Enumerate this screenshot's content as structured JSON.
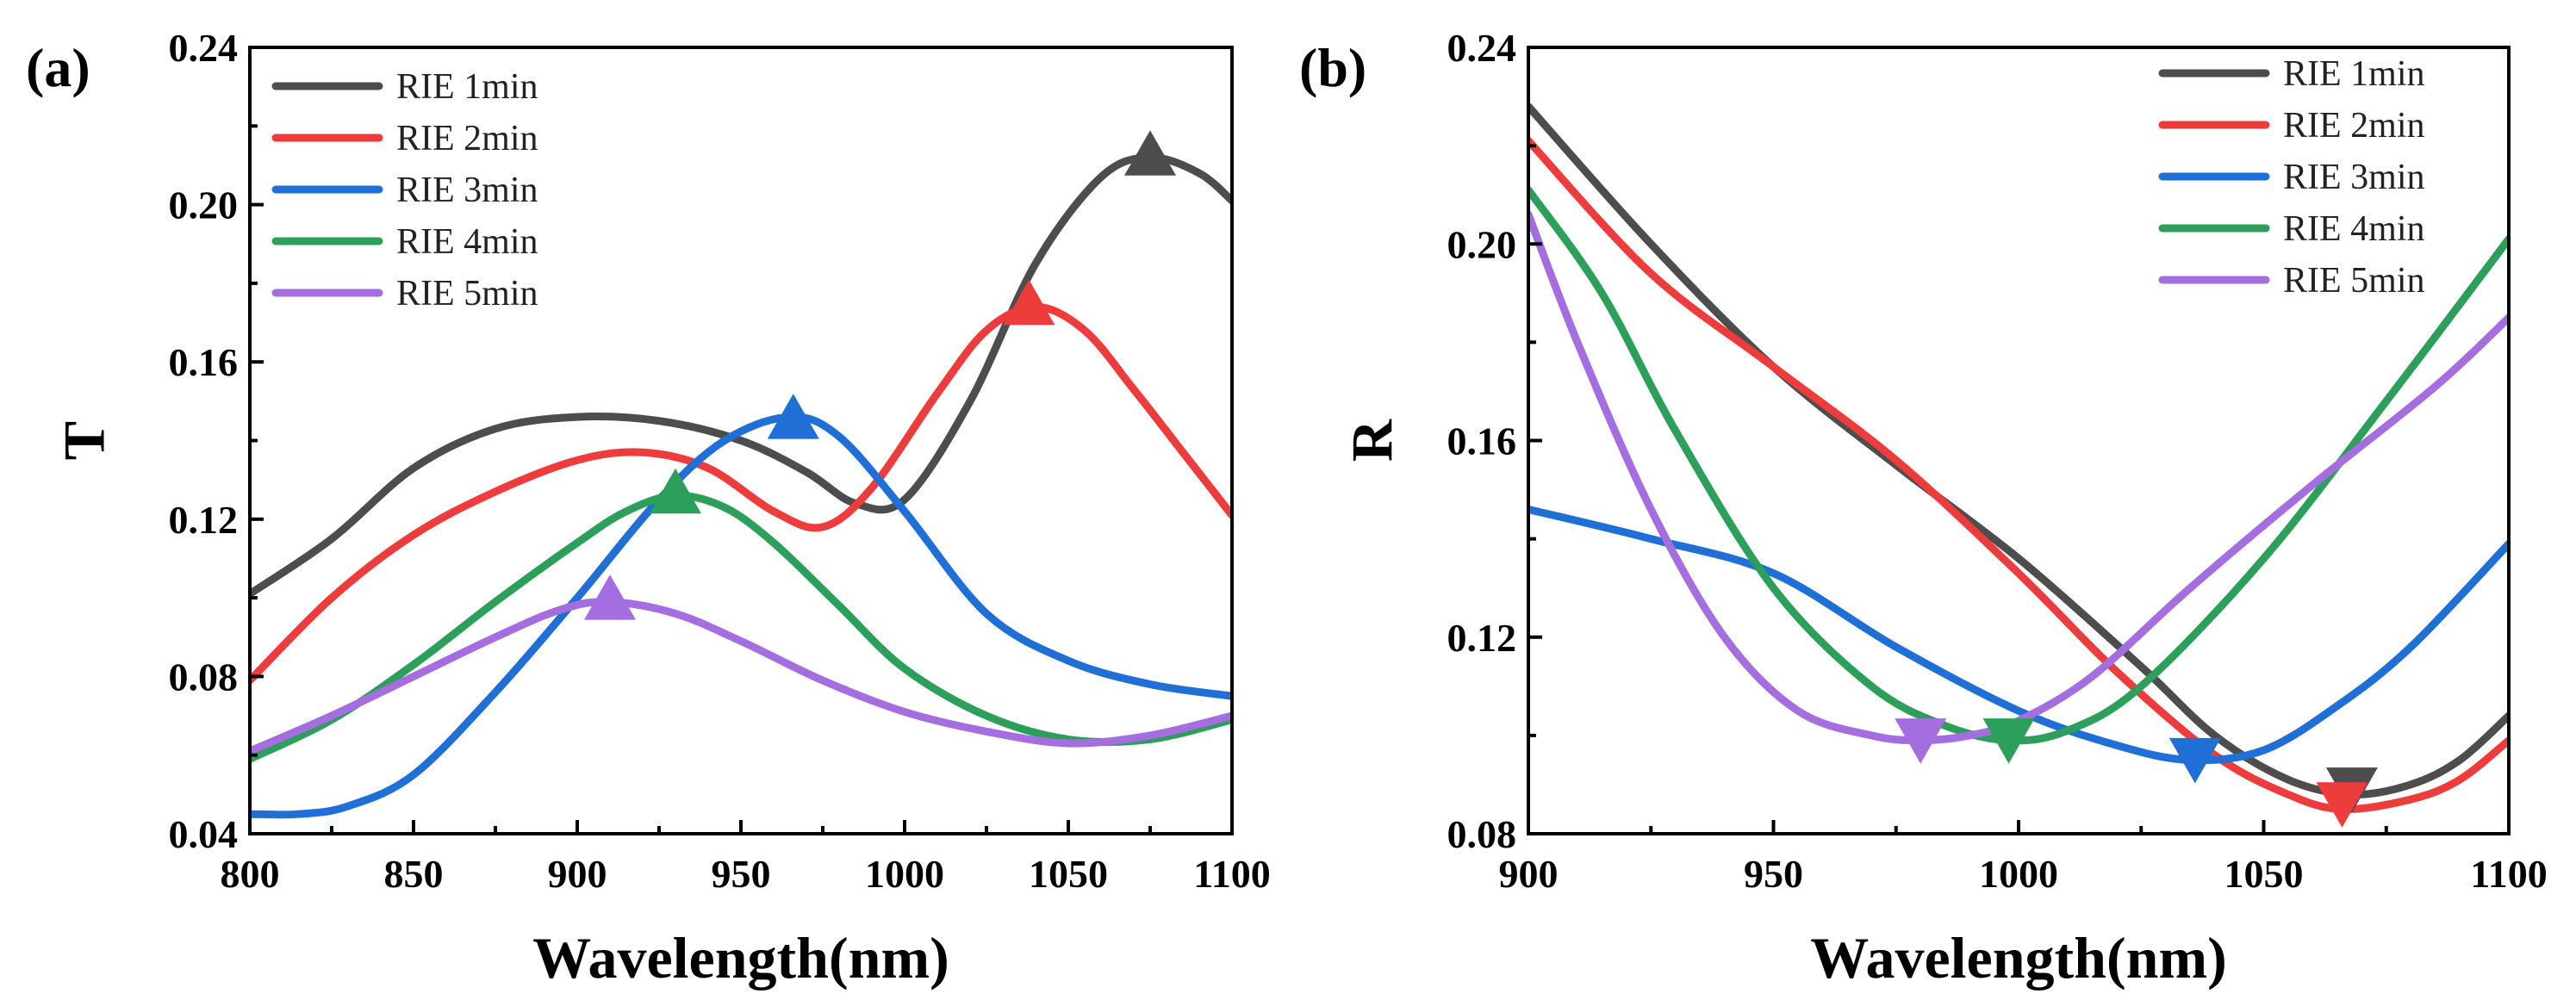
{
  "chart_data": [
    {
      "panel_label": "(a)",
      "type": "line",
      "xlabel": "Wavelength(nm)",
      "ylabel": "T",
      "xlim": [
        800,
        1100
      ],
      "ylim": [
        0.04,
        0.24
      ],
      "x_ticks": [
        800,
        850,
        900,
        950,
        1000,
        1050,
        1100
      ],
      "x_tick_labels": [
        "800",
        "850",
        "900",
        "950",
        "1000",
        "1050",
        "1100"
      ],
      "y_ticks": [
        0.04,
        0.08,
        0.12,
        0.16,
        0.2,
        0.24
      ],
      "y_tick_labels": [
        "0.04",
        "0.08",
        "0.12",
        "0.16",
        "0.20",
        "0.24"
      ],
      "legend_position": "top-left",
      "marker_shape": "triangle-up",
      "series": [
        {
          "name": "RIE 1min",
          "color": "#4d4d4d",
          "x": [
            800,
            825,
            850,
            875,
            900,
            925,
            950,
            970,
            985,
            1000,
            1020,
            1040,
            1060,
            1075,
            1090,
            1100
          ],
          "y": [
            0.101,
            0.115,
            0.133,
            0.143,
            0.146,
            0.145,
            0.14,
            0.132,
            0.124,
            0.125,
            0.15,
            0.185,
            0.207,
            0.212,
            0.208,
            0.201
          ],
          "marker": {
            "x": 1075,
            "y": 0.213
          }
        },
        {
          "name": "RIE 2min",
          "color": "#ee3b3b",
          "x": [
            800,
            825,
            850,
            875,
            900,
            920,
            940,
            960,
            975,
            990,
            1010,
            1025,
            1040,
            1055,
            1070,
            1085,
            1100
          ],
          "y": [
            0.079,
            0.1,
            0.116,
            0.127,
            0.135,
            0.137,
            0.133,
            0.122,
            0.118,
            0.128,
            0.152,
            0.168,
            0.174,
            0.168,
            0.153,
            0.137,
            0.121
          ],
          "marker": {
            "x": 1038,
            "y": 0.175
          }
        },
        {
          "name": "RIE 3min",
          "color": "#1f6fd6",
          "x": [
            800,
            815,
            830,
            850,
            875,
            900,
            925,
            945,
            965,
            980,
            1000,
            1025,
            1050,
            1075,
            1100
          ],
          "y": [
            0.045,
            0.045,
            0.047,
            0.055,
            0.076,
            0.1,
            0.125,
            0.14,
            0.146,
            0.141,
            0.122,
            0.096,
            0.084,
            0.078,
            0.075
          ],
          "marker": {
            "x": 966,
            "y": 0.146
          }
        },
        {
          "name": "RIE 4min",
          "color": "#2ca05a",
          "x": [
            800,
            825,
            850,
            875,
            900,
            915,
            930,
            945,
            960,
            980,
            1000,
            1025,
            1050,
            1075,
            1100
          ],
          "y": [
            0.059,
            0.069,
            0.083,
            0.099,
            0.114,
            0.122,
            0.126,
            0.123,
            0.114,
            0.098,
            0.082,
            0.07,
            0.064,
            0.064,
            0.069
          ],
          "marker": {
            "x": 930,
            "y": 0.127
          }
        },
        {
          "name": "RIE 5min",
          "color": "#a56ee0",
          "x": [
            800,
            825,
            850,
            875,
            895,
            910,
            930,
            950,
            975,
            1000,
            1025,
            1050,
            1075,
            1100
          ],
          "y": [
            0.061,
            0.07,
            0.08,
            0.09,
            0.097,
            0.099,
            0.096,
            0.089,
            0.079,
            0.071,
            0.066,
            0.063,
            0.065,
            0.07
          ],
          "marker": {
            "x": 910,
            "y": 0.1
          }
        }
      ]
    },
    {
      "panel_label": "(b)",
      "type": "line",
      "xlabel": "Wavelength(nm)",
      "ylabel": "R",
      "xlim": [
        900,
        1100
      ],
      "ylim": [
        0.08,
        0.24
      ],
      "x_ticks": [
        900,
        950,
        1000,
        1050,
        1100
      ],
      "x_tick_labels": [
        "900",
        "950",
        "1000",
        "1050",
        "1100"
      ],
      "y_ticks": [
        0.08,
        0.12,
        0.16,
        0.2,
        0.24
      ],
      "y_tick_labels": [
        "0.08",
        "0.12",
        "0.16",
        "0.20",
        "0.24"
      ],
      "legend_position": "top-right",
      "marker_shape": "triangle-down",
      "series": [
        {
          "name": "RIE 1min",
          "color": "#4d4d4d",
          "x": [
            900,
            925,
            950,
            975,
            1000,
            1025,
            1040,
            1055,
            1068,
            1080,
            1090,
            1100
          ],
          "y": [
            0.228,
            0.2,
            0.175,
            0.155,
            0.136,
            0.114,
            0.1,
            0.091,
            0.088,
            0.09,
            0.095,
            0.104
          ],
          "marker": {
            "x": 1068,
            "y": 0.089
          }
        },
        {
          "name": "RIE 2min",
          "color": "#ee3b3b",
          "x": [
            900,
            925,
            950,
            975,
            1000,
            1020,
            1040,
            1055,
            1066,
            1080,
            1090,
            1100
          ],
          "y": [
            0.221,
            0.194,
            0.175,
            0.156,
            0.133,
            0.113,
            0.096,
            0.088,
            0.085,
            0.087,
            0.091,
            0.099
          ],
          "marker": {
            "x": 1066,
            "y": 0.086
          }
        },
        {
          "name": "RIE 3min",
          "color": "#1f6fd6",
          "x": [
            900,
            925,
            950,
            975,
            1000,
            1020,
            1035,
            1050,
            1065,
            1080,
            1100
          ],
          "y": [
            0.146,
            0.14,
            0.133,
            0.118,
            0.105,
            0.098,
            0.095,
            0.097,
            0.106,
            0.118,
            0.139
          ],
          "marker": {
            "x": 1036,
            "y": 0.095
          }
        },
        {
          "name": "RIE 4min",
          "color": "#2ca05a",
          "x": [
            900,
            915,
            930,
            950,
            970,
            985,
            998,
            1010,
            1025,
            1050,
            1075,
            1100
          ],
          "y": [
            0.211,
            0.19,
            0.162,
            0.13,
            0.11,
            0.102,
            0.099,
            0.101,
            0.11,
            0.136,
            0.168,
            0.201
          ],
          "marker": {
            "x": 998,
            "y": 0.099
          }
        },
        {
          "name": "RIE 5min",
          "color": "#a56ee0",
          "x": [
            900,
            910,
            925,
            940,
            955,
            970,
            980,
            990,
            1000,
            1015,
            1035,
            1060,
            1085,
            1100
          ],
          "y": [
            0.206,
            0.18,
            0.146,
            0.12,
            0.105,
            0.1,
            0.099,
            0.1,
            0.103,
            0.112,
            0.13,
            0.151,
            0.171,
            0.185
          ],
          "marker": {
            "x": 980,
            "y": 0.099
          }
        }
      ]
    }
  ]
}
